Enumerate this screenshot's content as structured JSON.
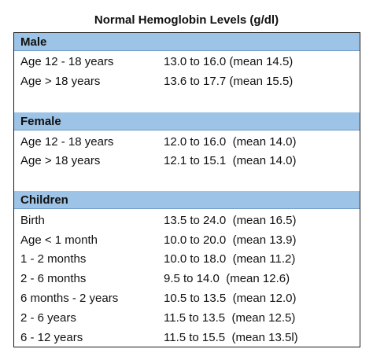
{
  "title": "Normal Hemoglobin Levels (g/dl)",
  "sections": [
    {
      "name": "Male",
      "rows": [
        {
          "label": "Age 12 - 18 years",
          "value": "13.0 to 16.0 (mean 14.5)"
        },
        {
          "label": "Age > 18 years",
          "value": "13.6 to 17.7 (mean 15.5)"
        }
      ]
    },
    {
      "name": "Female",
      "rows": [
        {
          "label": "Age 12 - 18 years",
          "value": "12.0 to 16.0  (mean 14.0)"
        },
        {
          "label": "Age > 18 years",
          "value": "12.1 to 15.1  (mean 14.0)"
        }
      ]
    },
    {
      "name": "Children",
      "rows": [
        {
          "label": "Birth",
          "value": "13.5 to 24.0  (mean 16.5)"
        },
        {
          "label": "Age < 1 month",
          "value": "10.0 to 20.0  (mean 13.9)"
        },
        {
          "label": "1 - 2 months",
          "value": "10.0 to 18.0  (mean 11.2)"
        },
        {
          "label": "2 - 6 months",
          "value": "9.5 to 14.0  (mean 12.6)"
        },
        {
          "label": "6 months - 2 years",
          "value": "10.5 to 13.5  (mean 12.0)"
        },
        {
          "label": "2 - 6 years",
          "value": "11.5 to 13.5  (mean 12.5)"
        },
        {
          "label": "6 - 12 years",
          "value": "11.5 to 15.5  (mean 13.5l)"
        }
      ]
    }
  ],
  "colors": {
    "section_header_bg": "#9dc3e6",
    "border": "#1a1a1a"
  }
}
